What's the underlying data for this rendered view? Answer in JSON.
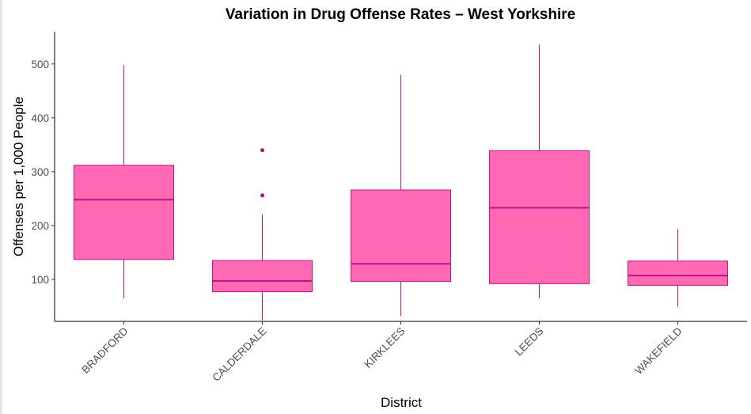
{
  "chart_data": {
    "type": "box",
    "title": "Variation in Drug Offense Rates – West Yorkshire",
    "xlabel": "District",
    "ylabel": "Offenses per 1,000 People",
    "ylim": [
      22,
      560
    ],
    "yticks": [
      100,
      200,
      300,
      400,
      500
    ],
    "grid": false,
    "colors": {
      "box_fill": "#ff69b4",
      "box_stroke": "#c71585",
      "median": "#b5178a",
      "axis": "#000000"
    },
    "categories": [
      "BRADFORD",
      "CALDERDALE",
      "KIRKLEES",
      "LEEDS",
      "WAKEFIELD"
    ],
    "boxes": [
      {
        "category": "BRADFORD",
        "min": 65,
        "q1": 137,
        "median": 248,
        "q3": 312,
        "max": 498,
        "outliers": []
      },
      {
        "category": "CALDERDALE",
        "min": 24,
        "q1": 77,
        "median": 97,
        "q3": 135,
        "max": 221,
        "outliers": [
          256,
          340
        ]
      },
      {
        "category": "KIRKLEES",
        "min": 32,
        "q1": 96,
        "median": 129,
        "q3": 266,
        "max": 480,
        "outliers": []
      },
      {
        "category": "LEEDS",
        "min": 65,
        "q1": 92,
        "median": 233,
        "q3": 339,
        "max": 536,
        "outliers": []
      },
      {
        "category": "WAKEFIELD",
        "min": 49,
        "q1": 89,
        "median": 107,
        "q3": 134,
        "max": 193,
        "outliers": []
      }
    ]
  }
}
